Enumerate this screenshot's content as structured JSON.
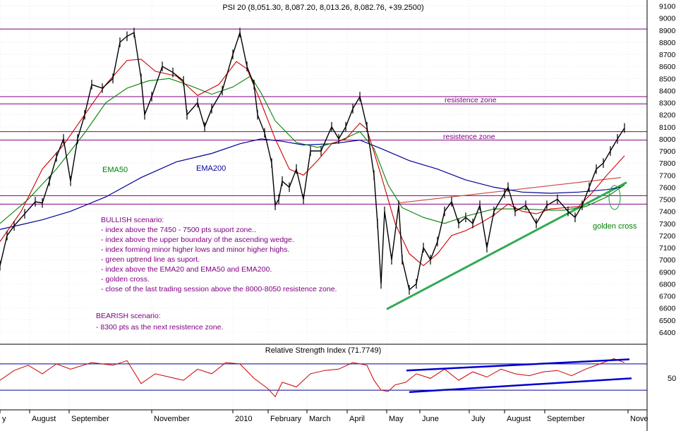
{
  "chart_data": [
    {
      "type": "line",
      "title": "PSI 20 (8,051.30, 8,087.20, 8,013.26, 8,082.76, +39.2500)",
      "ylim": [
        6300,
        9150
      ],
      "y_ticks": [
        6400,
        6500,
        6600,
        6700,
        6800,
        6900,
        7000,
        7100,
        7200,
        7300,
        7400,
        7500,
        7600,
        7700,
        7800,
        7900,
        8000,
        8100,
        8200,
        8300,
        8400,
        8500,
        8600,
        8700,
        8800,
        8900,
        9000,
        9100
      ],
      "x_tick_labels": [
        "y",
        "August",
        "September",
        "November",
        "2010",
        "February",
        "March",
        "April",
        "May",
        "June",
        "July",
        "August",
        "September",
        "Nove"
      ],
      "grid": true,
      "horizontal_levels": [
        8910,
        8350,
        8290,
        8060,
        7990,
        7530,
        7460
      ],
      "annotations": [
        "resistence zone",
        "resistence zone",
        "EMA50",
        "EMA200",
        "golden cross"
      ],
      "colors": {
        "price": "#000000",
        "ema20": "#cc0000",
        "ema50": "#008000",
        "ema200": "#000099",
        "levels": "#800080",
        "uptrend": "#33aa55",
        "wedge_top": "#cc4444",
        "text": "#800080"
      },
      "series": [
        {
          "name": "EMA200",
          "points": [
            [
              0,
              7250
            ],
            [
              30,
              7290
            ],
            [
              60,
              7330
            ],
            [
              100,
              7400
            ],
            [
              150,
              7520
            ],
            [
              200,
              7680
            ],
            [
              250,
              7810
            ],
            [
              300,
              7880
            ],
            [
              340,
              7960
            ],
            [
              370,
              8000
            ],
            [
              400,
              7980
            ],
            [
              430,
              7950
            ],
            [
              470,
              7960
            ],
            [
              510,
              7990
            ],
            [
              540,
              7920
            ],
            [
              580,
              7820
            ],
            [
              620,
              7750
            ],
            [
              660,
              7660
            ],
            [
              700,
              7600
            ],
            [
              740,
              7560
            ],
            [
              780,
              7550
            ],
            [
              820,
              7560
            ],
            [
              860,
              7580
            ],
            [
              880,
              7600
            ]
          ]
        },
        {
          "name": "EMA50",
          "points": [
            [
              0,
              7300
            ],
            [
              40,
              7500
            ],
            [
              80,
              7750
            ],
            [
              120,
              8050
            ],
            [
              150,
              8300
            ],
            [
              180,
              8420
            ],
            [
              210,
              8480
            ],
            [
              240,
              8500
            ],
            [
              270,
              8440
            ],
            [
              300,
              8370
            ],
            [
              330,
              8430
            ],
            [
              355,
              8520
            ],
            [
              370,
              8380
            ],
            [
              390,
              8150
            ],
            [
              420,
              7970
            ],
            [
              450,
              7930
            ],
            [
              480,
              7980
            ],
            [
              510,
              8060
            ],
            [
              530,
              7920
            ],
            [
              550,
              7620
            ],
            [
              570,
              7430
            ],
            [
              600,
              7350
            ],
            [
              630,
              7300
            ],
            [
              660,
              7360
            ],
            [
              700,
              7420
            ],
            [
              740,
              7420
            ],
            [
              780,
              7410
            ],
            [
              800,
              7410
            ],
            [
              830,
              7440
            ],
            [
              860,
              7520
            ],
            [
              885,
              7620
            ]
          ]
        },
        {
          "name": "EMA20",
          "points": [
            [
              0,
              7150
            ],
            [
              30,
              7400
            ],
            [
              60,
              7750
            ],
            [
              90,
              7950
            ],
            [
              120,
              8200
            ],
            [
              150,
              8450
            ],
            [
              180,
              8650
            ],
            [
              200,
              8660
            ],
            [
              220,
              8560
            ],
            [
              250,
              8520
            ],
            [
              280,
              8360
            ],
            [
              310,
              8450
            ],
            [
              335,
              8640
            ],
            [
              350,
              8580
            ],
            [
              370,
              8300
            ],
            [
              390,
              8000
            ],
            [
              410,
              7750
            ],
            [
              430,
              7700
            ],
            [
              450,
              7820
            ],
            [
              470,
              7960
            ],
            [
              490,
              8000
            ],
            [
              510,
              8130
            ],
            [
              520,
              8080
            ],
            [
              540,
              7700
            ],
            [
              560,
              7300
            ],
            [
              580,
              7050
            ],
            [
              600,
              6950
            ],
            [
              620,
              7050
            ],
            [
              640,
              7200
            ],
            [
              660,
              7240
            ],
            [
              680,
              7300
            ],
            [
              700,
              7370
            ],
            [
              720,
              7460
            ],
            [
              740,
              7400
            ],
            [
              760,
              7380
            ],
            [
              780,
              7420
            ],
            [
              800,
              7430
            ],
            [
              820,
              7440
            ],
            [
              840,
              7560
            ],
            [
              860,
              7700
            ],
            [
              885,
              7860
            ]
          ]
        },
        {
          "name": "PSI 20",
          "points": [
            [
              0,
              6950
            ],
            [
              10,
              7200
            ],
            [
              20,
              7280
            ],
            [
              35,
              7380
            ],
            [
              50,
              7480
            ],
            [
              60,
              7470
            ],
            [
              70,
              7650
            ],
            [
              80,
              7850
            ],
            [
              90,
              8000
            ],
            [
              100,
              7650
            ],
            [
              110,
              8000
            ],
            [
              120,
              8200
            ],
            [
              130,
              8450
            ],
            [
              145,
              8420
            ],
            [
              160,
              8500
            ],
            [
              170,
              8800
            ],
            [
              180,
              8850
            ],
            [
              190,
              8880
            ],
            [
              200,
              8500
            ],
            [
              205,
              8200
            ],
            [
              215,
              8350
            ],
            [
              230,
              8600
            ],
            [
              245,
              8550
            ],
            [
              260,
              8480
            ],
            [
              265,
              8200
            ],
            [
              280,
              8300
            ],
            [
              290,
              8100
            ],
            [
              300,
              8250
            ],
            [
              315,
              8400
            ],
            [
              330,
              8700
            ],
            [
              340,
              8880
            ],
            [
              350,
              8600
            ],
            [
              360,
              8450
            ],
            [
              365,
              8200
            ],
            [
              375,
              8050
            ],
            [
              385,
              7800
            ],
            [
              390,
              7450
            ],
            [
              395,
              7500
            ],
            [
              400,
              7650
            ],
            [
              410,
              7600
            ],
            [
              420,
              7750
            ],
            [
              430,
              7500
            ],
            [
              440,
              7900
            ],
            [
              455,
              7900
            ],
            [
              470,
              8100
            ],
            [
              480,
              8000
            ],
            [
              490,
              8100
            ],
            [
              500,
              8250
            ],
            [
              510,
              8350
            ],
            [
              520,
              8100
            ],
            [
              530,
              7700
            ],
            [
              535,
              7300
            ],
            [
              540,
              6800
            ],
            [
              545,
              7400
            ],
            [
              555,
              7000
            ],
            [
              565,
              7450
            ],
            [
              570,
              7000
            ],
            [
              580,
              6750
            ],
            [
              590,
              6800
            ],
            [
              600,
              7100
            ],
            [
              610,
              7000
            ],
            [
              620,
              7150
            ],
            [
              630,
              7400
            ],
            [
              640,
              7480
            ],
            [
              650,
              7300
            ],
            [
              660,
              7350
            ],
            [
              670,
              7300
            ],
            [
              680,
              7450
            ],
            [
              690,
              7100
            ],
            [
              700,
              7400
            ],
            [
              715,
              7550
            ],
            [
              720,
              7600
            ],
            [
              730,
              7400
            ],
            [
              745,
              7450
            ],
            [
              760,
              7300
            ],
            [
              775,
              7450
            ],
            [
              790,
              7500
            ],
            [
              805,
              7400
            ],
            [
              815,
              7350
            ],
            [
              825,
              7450
            ],
            [
              835,
              7600
            ],
            [
              845,
              7750
            ],
            [
              855,
              7800
            ],
            [
              865,
              7900
            ],
            [
              875,
              8000
            ],
            [
              885,
              8090
            ]
          ]
        }
      ]
    },
    {
      "type": "line",
      "title": "Relative Strength Index (71.7749)",
      "ylim": [
        0,
        100
      ],
      "y_ticks": [
        50
      ],
      "grid": true,
      "horizontal_levels": [
        70,
        30
      ],
      "colors": {
        "rsi": "#cc0000",
        "trend": "#0000cc"
      },
      "series": [
        {
          "name": "Relative Strength Index",
          "points": [
            [
              0,
              45
            ],
            [
              20,
              60
            ],
            [
              40,
              68
            ],
            [
              60,
              55
            ],
            [
              80,
              70
            ],
            [
              100,
              62
            ],
            [
              130,
              72
            ],
            [
              160,
              68
            ],
            [
              180,
              75
            ],
            [
              200,
              40
            ],
            [
              220,
              55
            ],
            [
              240,
              50
            ],
            [
              260,
              45
            ],
            [
              280,
              62
            ],
            [
              300,
              55
            ],
            [
              320,
              72
            ],
            [
              340,
              70
            ],
            [
              360,
              48
            ],
            [
              380,
              32
            ],
            [
              390,
              20
            ],
            [
              400,
              42
            ],
            [
              420,
              35
            ],
            [
              440,
              55
            ],
            [
              460,
              60
            ],
            [
              480,
              62
            ],
            [
              500,
              72
            ],
            [
              520,
              68
            ],
            [
              530,
              45
            ],
            [
              540,
              30
            ],
            [
              550,
              28
            ],
            [
              560,
              38
            ],
            [
              575,
              42
            ],
            [
              590,
              55
            ],
            [
              610,
              48
            ],
            [
              630,
              62
            ],
            [
              650,
              45
            ],
            [
              670,
              58
            ],
            [
              690,
              50
            ],
            [
              710,
              62
            ],
            [
              730,
              55
            ],
            [
              750,
              52
            ],
            [
              770,
              58
            ],
            [
              790,
              60
            ],
            [
              810,
              52
            ],
            [
              830,
              62
            ],
            [
              850,
              70
            ],
            [
              870,
              78
            ],
            [
              885,
              72
            ]
          ]
        }
      ]
    }
  ],
  "panels": {
    "price_title": "PSI 20 (8,051.30, 8,087.20, 8,013.26, 8,082.76, +39.2500)",
    "rsi_title": "Relative Strength Index (71.7749)",
    "rsi_tick": "50"
  },
  "annotations": {
    "resistance_upper": "resistence zone",
    "resistance_lower": "resistence zone",
    "ema50": "EMA50",
    "ema200": "EMA200",
    "golden_cross": "golden cross"
  },
  "scenario": {
    "bullish_title": "BULLISH scenario:",
    "bullish_items": [
      "- index above the 7450 - 7500 pts suport zone..",
      "- index above the upper boundary of the ascending  wedge.",
      "- index forming minor higher lows and minor higher highs.",
      "- green uptrend line as suport.",
      "- index above the EMA20 and EMA50 and EMA200.",
      "- golden cross.",
      "- close of the last trading session above the 8000-8050 resistence zone."
    ],
    "bearish_title": "BEARISH scenario:",
    "bearish_items": [
      "- 8300 pts as the next resistence zone."
    ]
  }
}
